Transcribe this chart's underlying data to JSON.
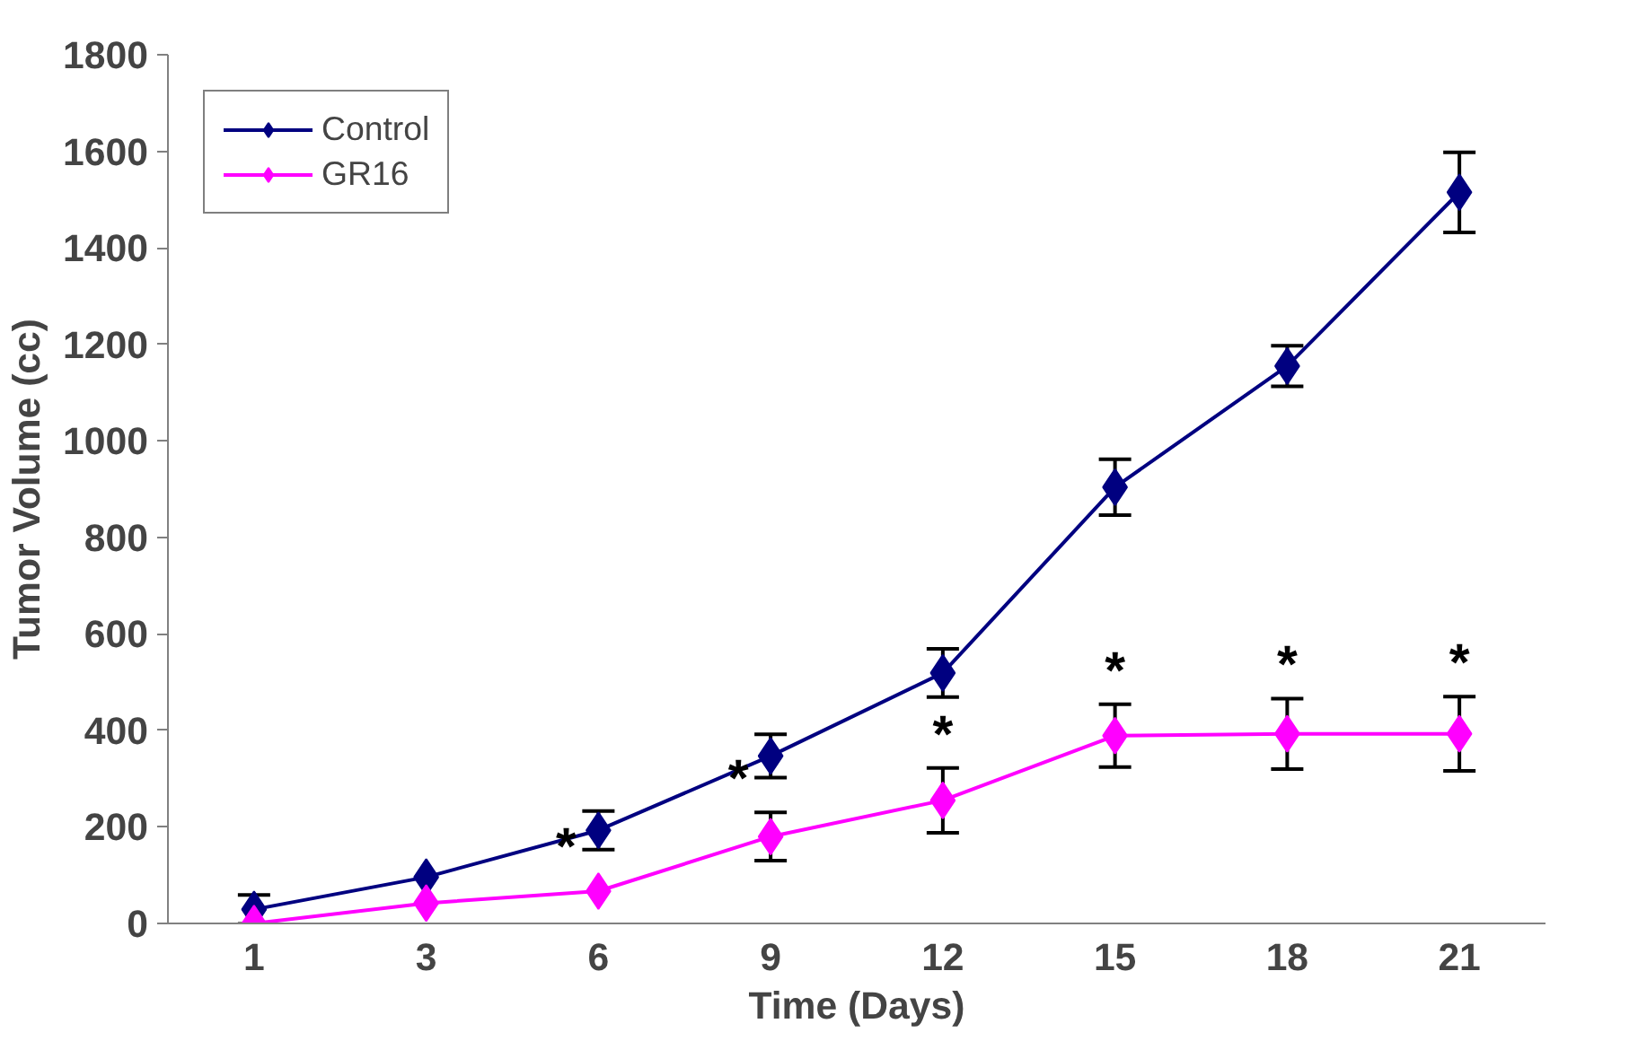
{
  "chart_data": {
    "type": "line",
    "xlabel": "Time (Days)",
    "ylabel": "Tumor Volume (cc)",
    "categories": [
      "1",
      "3",
      "6",
      "9",
      "12",
      "15",
      "18",
      "21"
    ],
    "series": [
      {
        "name": "Control",
        "color": "#000080",
        "values": [
          29,
          96,
          193,
          347,
          519,
          904,
          1155,
          1515
        ],
        "errors": [
          30,
          null,
          40,
          45,
          50,
          58,
          42,
          83
        ]
      },
      {
        "name": "GR16",
        "color": "#ff00ff",
        "values": [
          0,
          42,
          67,
          180,
          255,
          389,
          393,
          393
        ],
        "errors": [
          null,
          null,
          null,
          50,
          67,
          65,
          73,
          77
        ]
      }
    ],
    "ylim": [
      0,
      1800
    ],
    "yticks": [
      0,
      200,
      400,
      600,
      800,
      1000,
      1200,
      1400,
      1600,
      1800
    ],
    "annotations": [
      {
        "text": "*",
        "x": "6",
        "y": 67
      },
      {
        "text": "*",
        "x": "9",
        "y": 180
      },
      {
        "text": "*",
        "x": "12",
        "y": 255
      },
      {
        "text": "*",
        "x": "15",
        "y": 389
      },
      {
        "text": "*",
        "x": "18",
        "y": 393
      },
      {
        "text": "*",
        "x": "21",
        "y": 393
      }
    ],
    "marker": "diamond",
    "line_style": "solid",
    "grid": false,
    "legend": "top left"
  }
}
